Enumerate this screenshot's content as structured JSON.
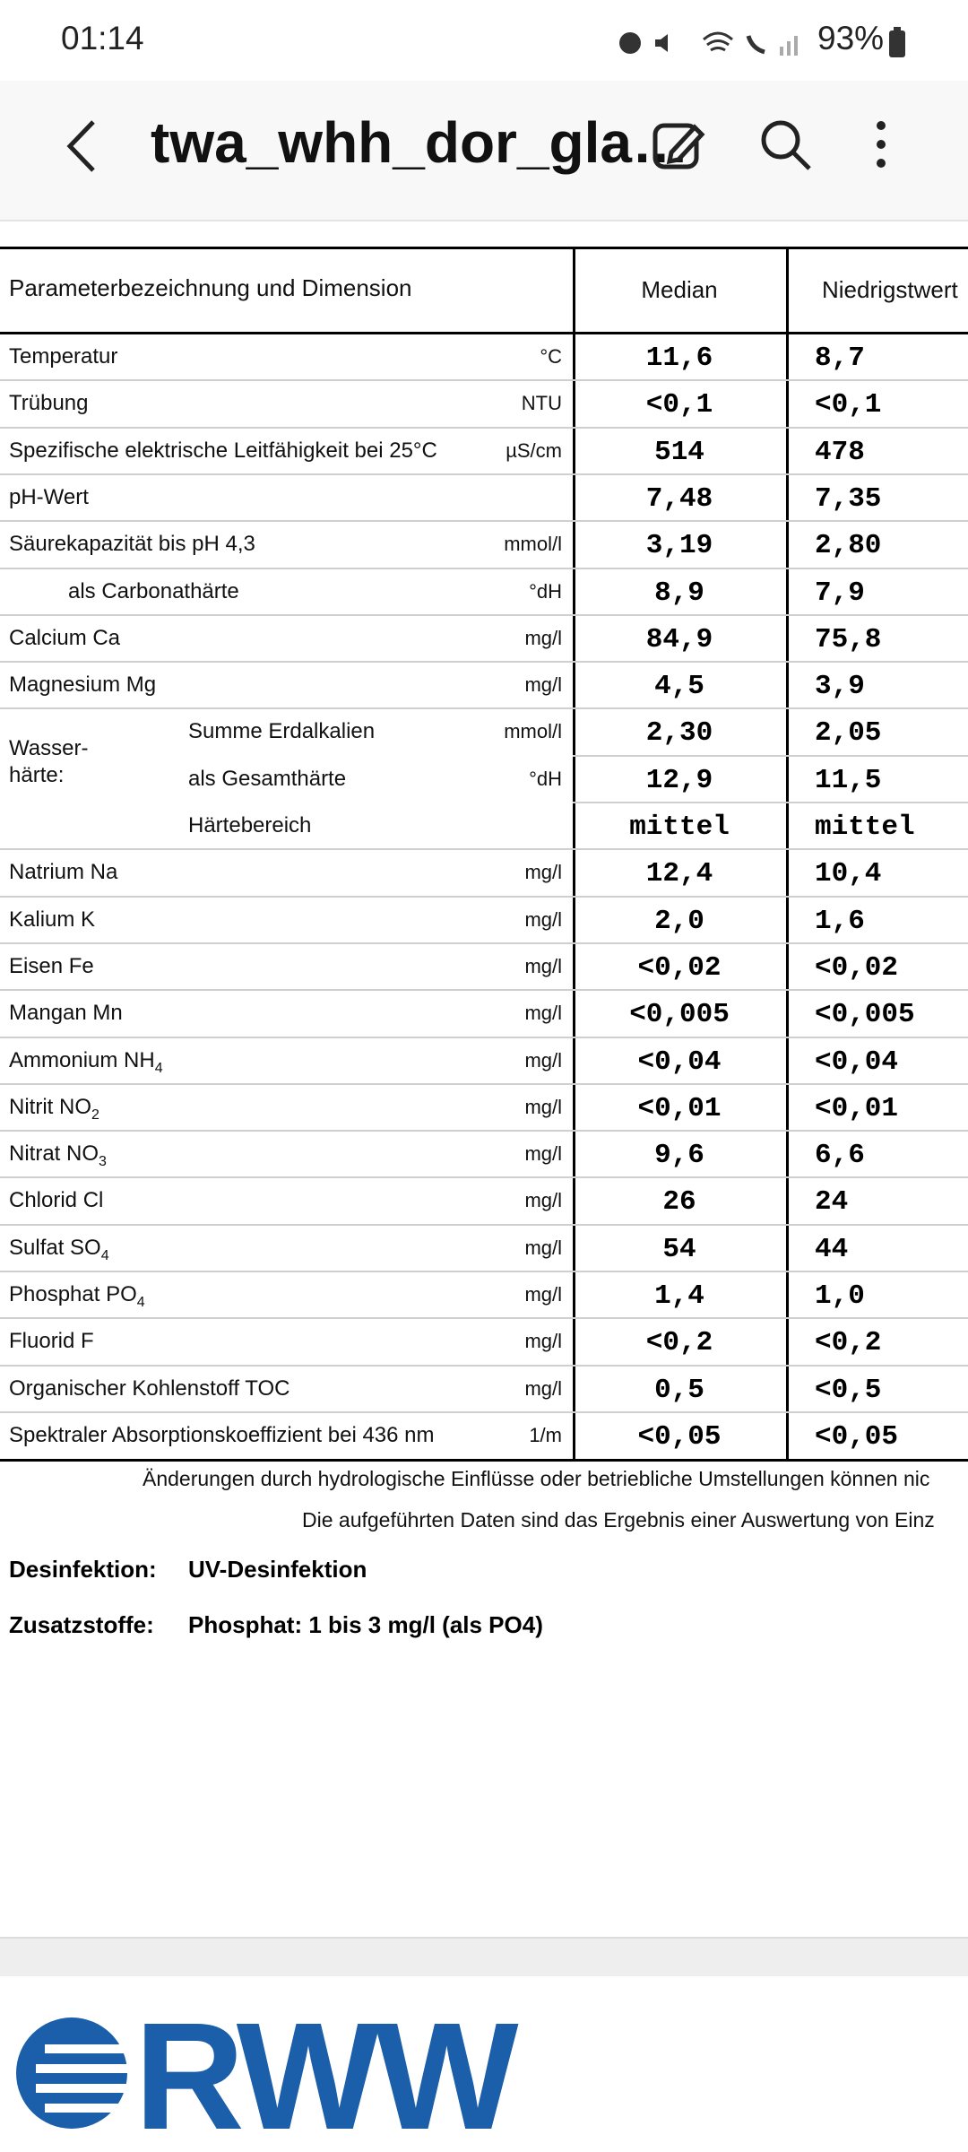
{
  "status_bar": {
    "time": "01:14",
    "battery": "93%"
  },
  "app_bar": {
    "title": "twa_whh_dor_gla…"
  },
  "table": {
    "columns": [
      "Parameterbezeichnung und Dimension",
      "Median",
      "Niedrigstwert"
    ],
    "group_label": [
      "Wasser-",
      "härte:"
    ],
    "rows": [
      {
        "parameter": "Temperatur",
        "unit": "°C",
        "median": "11,6",
        "min": "8,7"
      },
      {
        "parameter": "Trübung",
        "unit": "NTU",
        "median": "<0,1",
        "min": "<0,1"
      },
      {
        "parameter": "Spezifische elektrische Leitfähigkeit bei 25°C",
        "unit": "µS/cm",
        "median": "514",
        "min": "478"
      },
      {
        "parameter": "pH-Wert",
        "median": "7,48",
        "min": "7,35"
      },
      {
        "parameter": "Säurekapazität bis pH 4,3",
        "unit": "mmol/l",
        "median": "3,19",
        "min": "2,80"
      },
      {
        "parameter": "als Carbonathärte",
        "unit": "°dH",
        "median": "8,9",
        "min": "7,9"
      },
      {
        "parameter": "Calcium Ca",
        "unit": "mg/l",
        "median": "84,9",
        "min": "75,8"
      },
      {
        "parameter": "Magnesium Mg",
        "unit": "mg/l",
        "median": "4,5",
        "min": "3,9"
      },
      {
        "parameter": "Summe Erdalkalien",
        "unit": "mmol/l",
        "median": "2,30",
        "min": "2,05"
      },
      {
        "parameter": "als Gesamthärte",
        "unit": "°dH",
        "median": "12,9",
        "min": "11,5"
      },
      {
        "parameter": "Härtebereich",
        "median": "mittel",
        "min": "mittel"
      },
      {
        "parameter": "Natrium Na",
        "unit": "mg/l",
        "median": "12,4",
        "min": "10,4"
      },
      {
        "parameter": "Kalium K",
        "unit": "mg/l",
        "median": "2,0",
        "min": "1,6"
      },
      {
        "parameter": "Eisen Fe",
        "unit": "mg/l",
        "median": "<0,02",
        "min": "<0,02"
      },
      {
        "parameter": "Mangan Mn",
        "unit": "mg/l",
        "median": "<0,005",
        "min": "<0,005"
      },
      {
        "parameter": "Ammonium NH",
        "sub": "4",
        "unit": "mg/l",
        "median": "<0,04",
        "min": "<0,04"
      },
      {
        "parameter": "Nitrit NO",
        "sub": "2",
        "unit": "mg/l",
        "median": "<0,01",
        "min": "<0,01"
      },
      {
        "parameter": "Nitrat NO",
        "sub": "3",
        "unit": "mg/l",
        "median": "9,6",
        "min": "6,6"
      },
      {
        "parameter": "Chlorid Cl",
        "unit": "mg/l",
        "median": "26",
        "min": "24"
      },
      {
        "parameter": "Sulfat SO",
        "sub": "4",
        "unit": "mg/l",
        "median": "54",
        "min": "44"
      },
      {
        "parameter": "Phosphat PO",
        "sub": "4",
        "unit": "mg/l",
        "median": "1,4",
        "min": "1,0"
      },
      {
        "parameter": "Fluorid F",
        "unit": "mg/l",
        "median": "<0,2",
        "min": "<0,2"
      },
      {
        "parameter": "Organischer Kohlenstoff TOC",
        "unit": "mg/l",
        "median": "0,5",
        "min": "<0,5"
      },
      {
        "parameter": "Spektraler Absorptionskoeffizient bei 436 nm",
        "unit": "1/m",
        "median": "<0,05",
        "min": "<0,05"
      }
    ]
  },
  "notes": [
    "Änderungen durch hydrologische Einflüsse oder betriebliche Umstellungen können nic",
    "Die aufgeführten Daten sind das Ergebnis einer Auswertung von Einz"
  ],
  "info": [
    {
      "label": "Desinfektion:",
      "value": "UV-Desinfektion"
    },
    {
      "label": "Zusatzstoffe:",
      "value": "Phosphat: 1 bis 3 mg/l (als PO4)"
    }
  ],
  "logo": "RWW"
}
